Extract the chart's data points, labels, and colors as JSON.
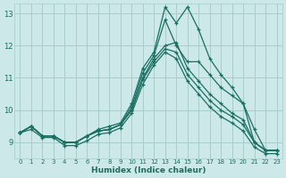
{
  "xlabel": "Humidex (Indice chaleur)",
  "xlim": [
    -0.5,
    23.5
  ],
  "ylim": [
    8.5,
    13.3
  ],
  "yticks": [
    9,
    10,
    11,
    12,
    13
  ],
  "xticks": [
    0,
    1,
    2,
    3,
    4,
    5,
    6,
    7,
    8,
    9,
    10,
    11,
    12,
    13,
    14,
    15,
    16,
    17,
    18,
    19,
    20,
    21,
    22,
    23
  ],
  "background_color": "#cce8e8",
  "grid_color": "#a8cccc",
  "line_color": "#1a6e62",
  "lines": [
    [
      9.3,
      9.5,
      9.2,
      9.2,
      9.0,
      9.0,
      9.2,
      9.4,
      9.5,
      9.6,
      10.2,
      11.3,
      11.8,
      13.2,
      12.7,
      13.2,
      12.5,
      11.6,
      11.1,
      10.7,
      10.2,
      9.0,
      8.75,
      8.75
    ],
    [
      9.3,
      9.5,
      9.2,
      9.2,
      9.0,
      9.0,
      9.2,
      9.35,
      9.4,
      9.55,
      10.1,
      11.15,
      11.7,
      12.8,
      12.0,
      11.5,
      11.5,
      11.1,
      10.7,
      10.45,
      10.2,
      9.4,
      8.75,
      8.75
    ],
    [
      9.3,
      9.5,
      9.2,
      9.2,
      9.0,
      9.0,
      9.2,
      9.35,
      9.4,
      9.55,
      10.0,
      11.0,
      11.6,
      12.0,
      12.1,
      11.3,
      10.9,
      10.5,
      10.2,
      9.9,
      9.7,
      9.0,
      8.75,
      8.75
    ],
    [
      9.3,
      9.5,
      9.2,
      9.2,
      9.0,
      9.0,
      9.2,
      9.35,
      9.4,
      9.55,
      10.0,
      10.95,
      11.5,
      11.9,
      11.8,
      11.1,
      10.7,
      10.3,
      10.0,
      9.8,
      9.55,
      9.0,
      8.75,
      8.75
    ],
    [
      9.3,
      9.4,
      9.15,
      9.15,
      8.9,
      8.9,
      9.05,
      9.25,
      9.3,
      9.45,
      9.9,
      10.8,
      11.4,
      11.8,
      11.6,
      10.9,
      10.5,
      10.1,
      9.8,
      9.6,
      9.35,
      8.85,
      8.65,
      8.65
    ]
  ]
}
